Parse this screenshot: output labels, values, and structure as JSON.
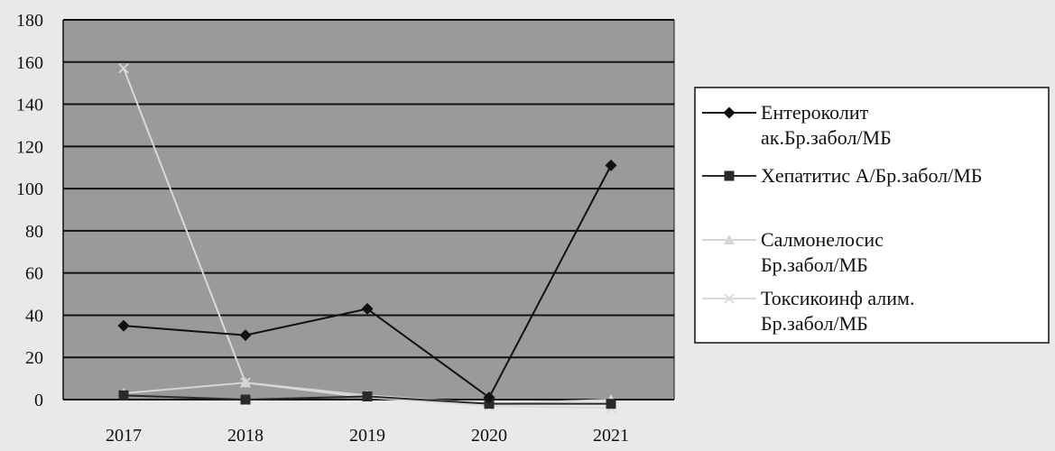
{
  "chart_data": {
    "type": "line",
    "x": [
      "2017",
      "2018",
      "2019",
      "2020",
      "2021"
    ],
    "ylim": [
      0,
      180
    ],
    "yticks": [
      0,
      20,
      40,
      60,
      80,
      100,
      120,
      140,
      160,
      180
    ],
    "grid": true,
    "legend_position": "right",
    "series": [
      {
        "name_lines": [
          "Ентероколит",
          "ак.Бр.забол/МБ"
        ],
        "values": [
          35,
          30.5,
          43,
          1,
          111
        ],
        "color": "#111111",
        "marker": "diamond"
      },
      {
        "name_lines": [
          "Хепатитис А/Бр.забол/МБ"
        ],
        "values": [
          2,
          0,
          1.5,
          -2,
          -2
        ],
        "color": "#2a2a2a",
        "marker": "square"
      },
      {
        "name_lines": [
          "Салмонелосис",
          "Бр.забол/МБ"
        ],
        "values": [
          3,
          8,
          2,
          -2,
          0
        ],
        "color": "#d6d6d6",
        "marker": "triangle"
      },
      {
        "name_lines": [
          "Токсикоинф алим.",
          "Бр.забол/МБ"
        ],
        "values": [
          157,
          8,
          1,
          -3,
          -4
        ],
        "color": "#d9d9d9",
        "marker": "x"
      }
    ]
  }
}
